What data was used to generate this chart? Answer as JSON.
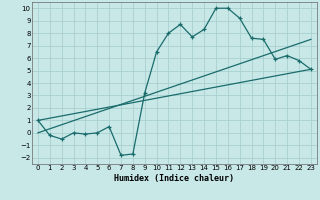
{
  "xlabel": "Humidex (Indice chaleur)",
  "xlim": [
    -0.5,
    23.5
  ],
  "ylim": [
    -2.5,
    10.5
  ],
  "xticks": [
    0,
    1,
    2,
    3,
    4,
    5,
    6,
    7,
    8,
    9,
    10,
    11,
    12,
    13,
    14,
    15,
    16,
    17,
    18,
    19,
    20,
    21,
    22,
    23
  ],
  "yticks": [
    -2,
    -1,
    0,
    1,
    2,
    3,
    4,
    5,
    6,
    7,
    8,
    9,
    10
  ],
  "background_color": "#c8e8e8",
  "grid_color": "#a8d0d0",
  "line_color": "#1a6b6b",
  "curve1_x": [
    0,
    1,
    2,
    3,
    4,
    5,
    6,
    7,
    8,
    9,
    10,
    11,
    12,
    13,
    14,
    15,
    16,
    17,
    18,
    19,
    20,
    21,
    22,
    23
  ],
  "curve1_y": [
    1.0,
    -0.2,
    -0.5,
    0.0,
    -0.1,
    0.0,
    0.5,
    -1.8,
    -1.7,
    3.2,
    6.5,
    8.0,
    8.7,
    7.7,
    8.3,
    10.0,
    10.0,
    9.2,
    7.6,
    7.5,
    5.9,
    6.2,
    5.8,
    5.1
  ],
  "line1_x": [
    0,
    23
  ],
  "line1_y": [
    1.0,
    5.1
  ],
  "line2_x": [
    0,
    23
  ],
  "line2_y": [
    0.0,
    7.5
  ]
}
